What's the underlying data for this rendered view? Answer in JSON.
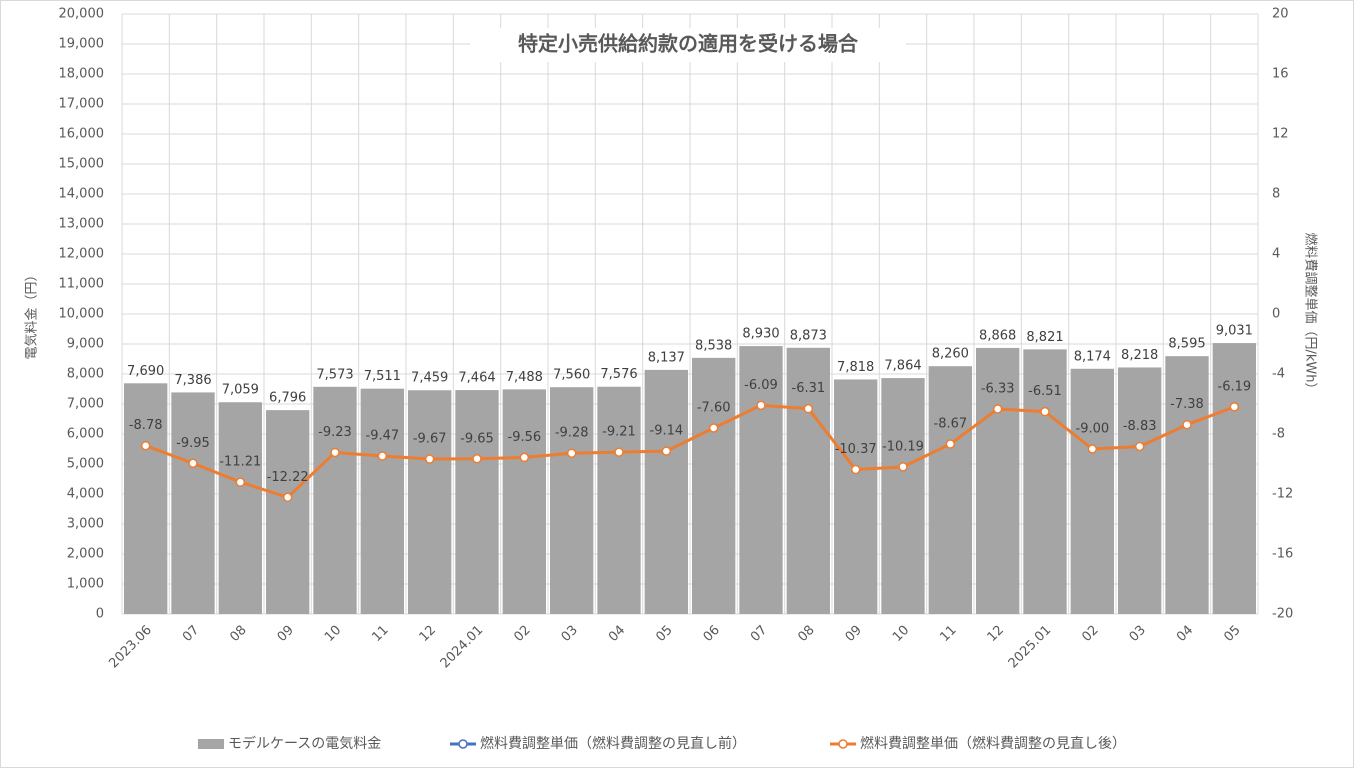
{
  "chart_data": {
    "type": "combo",
    "title": "特定小売供給約款の適用を受ける場合",
    "y_label": "電気料金（円）",
    "y2_label": "燃料費調整単価（円/kWh）",
    "categories": [
      "2023.06",
      "07",
      "08",
      "09",
      "10",
      "11",
      "12",
      "2024.01",
      "02",
      "03",
      "04",
      "05",
      "06",
      "07",
      "08",
      "09",
      "10",
      "11",
      "12",
      "2025.01",
      "02",
      "03",
      "04",
      "05"
    ],
    "series": [
      {
        "name": "モデルケースの電気料金",
        "type": "bar",
        "color": "#a5a5a5",
        "values": [
          7690,
          7386,
          7059,
          6796,
          7573,
          7511,
          7459,
          7464,
          7488,
          7560,
          7576,
          8137,
          8538,
          8930,
          8873,
          7818,
          7864,
          8260,
          8868,
          8821,
          8174,
          8218,
          8595,
          9031
        ],
        "value_labels": [
          "7,690",
          "7,386",
          "7,059",
          "6,796",
          "7,573",
          "7,511",
          "7,459",
          "7,464",
          "7,488",
          "7,560",
          "7,576",
          "8,137",
          "8,538",
          "8,930",
          "8,873",
          "7,818",
          "7,864",
          "8,260",
          "8,868",
          "8,821",
          "8,174",
          "8,218",
          "8,595",
          "9,031"
        ]
      },
      {
        "name": "燃料費調整単価（燃料費調整の見直し前）",
        "type": "line",
        "color": "#4472c4",
        "axis": "y2",
        "values": [
          null,
          null,
          null,
          null,
          null,
          null,
          null,
          null,
          null,
          null,
          null,
          null,
          null,
          null,
          null,
          null,
          null,
          null,
          null,
          null,
          null,
          null,
          null,
          null
        ]
      },
      {
        "name": "燃料費調整単価（燃料費調整の見直し後）",
        "type": "line",
        "color": "#ed7d31",
        "axis": "y2",
        "values": [
          -8.78,
          -9.95,
          -11.21,
          -12.22,
          -9.23,
          -9.47,
          -9.67,
          -9.65,
          -9.56,
          -9.28,
          -9.21,
          -9.14,
          -7.6,
          -6.09,
          -6.31,
          -10.37,
          -10.19,
          -8.67,
          -6.33,
          -6.51,
          -9.0,
          -8.83,
          -7.38,
          -6.19
        ],
        "value_labels": [
          "-8.78",
          "-9.95",
          "-11.21",
          "-12.22",
          "-9.23",
          "-9.47",
          "-9.67",
          "-9.65",
          "-9.56",
          "-9.28",
          "-9.21",
          "-9.14",
          "-7.60",
          "-6.09",
          "-6.31",
          "-10.37",
          "-10.19",
          "-8.67",
          "-6.33",
          "-6.51",
          "-9.00",
          "-8.83",
          "-7.38",
          "-6.19"
        ]
      }
    ],
    "ylim": [
      0,
      20000
    ],
    "yticks": [
      0,
      {
        "value": 1000,
        "label": "1,000"
      },
      {
        "value": 2000,
        "label": "2,000"
      },
      {
        "value": 3000,
        "label": "3,000"
      },
      {
        "value": 4000,
        "label": "4,000"
      },
      {
        "value": 5000,
        "label": "5,000"
      },
      {
        "value": 6000,
        "label": "6,000"
      },
      {
        "value": 7000,
        "label": "7,000"
      },
      {
        "value": 8000,
        "label": "8,000"
      },
      {
        "value": 9000,
        "label": "9,000"
      },
      {
        "value": 10000,
        "label": "10,000"
      },
      {
        "value": 11000,
        "label": "11,000"
      },
      {
        "value": 12000,
        "label": "12,000"
      },
      {
        "value": 13000,
        "label": "13,000"
      },
      {
        "value": 14000,
        "label": "14,000"
      },
      {
        "value": 15000,
        "label": "15,000"
      },
      {
        "value": 16000,
        "label": "16,000"
      },
      {
        "value": 17000,
        "label": "17,000"
      },
      {
        "value": 18000,
        "label": "18,000"
      },
      {
        "value": 19000,
        "label": "19,000"
      },
      {
        "value": 20000,
        "label": "20,000"
      }
    ],
    "y2lim": [
      -20,
      20
    ],
    "y2ticks": [
      -20,
      -16,
      -12,
      -8,
      -4,
      0,
      4,
      8,
      12,
      16,
      20
    ],
    "grid": true,
    "legend": "bottom"
  }
}
